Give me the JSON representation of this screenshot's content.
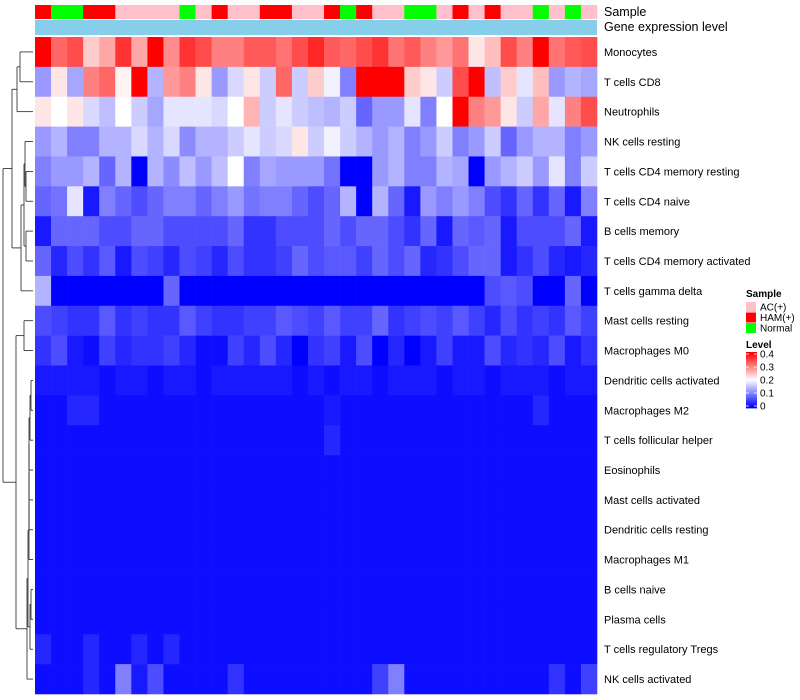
{
  "chart_data": {
    "type": "heatmap",
    "annotations": {
      "sample_label": "Sample",
      "expression_label": "Gene expression level",
      "sample_groups": [
        "HAM(+)",
        "Normal",
        "Normal",
        "HAM(+)",
        "HAM(+)",
        "AC(+)",
        "AC(+)",
        "AC(+)",
        "AC(+)",
        "Normal",
        "AC(+)",
        "HAM(+)",
        "AC(+)",
        "AC(+)",
        "HAM(+)",
        "HAM(+)",
        "AC(+)",
        "AC(+)",
        "HAM(+)",
        "Normal",
        "HAM(+)",
        "AC(+)",
        "AC(+)",
        "Normal",
        "Normal",
        "AC(+)",
        "HAM(+)",
        "AC(+)",
        "HAM(+)",
        "AC(+)",
        "AC(+)",
        "Normal",
        "AC(+)",
        "Normal",
        "AC(+)"
      ]
    },
    "rows": [
      "Monocytes",
      "T cells CD8",
      "Neutrophils",
      "NK cells resting",
      "T cells CD4 memory resting",
      "T cells CD4 naive",
      "B cells memory",
      "T cells CD4 memory activated",
      "T cells gamma delta",
      "Mast cells resting",
      "Macrophages M0",
      "Dendritic cells activated",
      "Macrophages M2",
      "T cells follicular helper",
      "Eosinophils",
      "Mast cells activated",
      "Dendritic cells resting",
      "Macrophages M1",
      "B cells naive",
      "Plasma cells",
      "T cells regulatory  Tregs",
      "NK cells activated"
    ],
    "values": [
      [
        0.4,
        0.32,
        0.34,
        0.24,
        0.27,
        0.36,
        0.27,
        0.4,
        0.29,
        0.36,
        0.34,
        0.3,
        0.3,
        0.33,
        0.33,
        0.31,
        0.34,
        0.37,
        0.33,
        0.32,
        0.34,
        0.36,
        0.31,
        0.33,
        0.3,
        0.28,
        0.31,
        0.22,
        0.25,
        0.34,
        0.3,
        0.4,
        0.31,
        0.33,
        0.34
      ],
      [
        0.12,
        0.22,
        0.13,
        0.3,
        0.32,
        0.21,
        0.4,
        0.14,
        0.28,
        0.3,
        0.22,
        0.12,
        0.17,
        0.22,
        0.16,
        0.32,
        0.16,
        0.24,
        0.19,
        0.1,
        0.4,
        0.4,
        0.4,
        0.24,
        0.22,
        0.16,
        0.34,
        0.4,
        0.15,
        0.24,
        0.18,
        0.25,
        0.12,
        0.14,
        0.13
      ],
      [
        0.22,
        0.2,
        0.22,
        0.17,
        0.15,
        0.2,
        0.16,
        0.13,
        0.18,
        0.18,
        0.18,
        0.17,
        0.2,
        0.26,
        0.16,
        0.18,
        0.16,
        0.15,
        0.14,
        0.16,
        0.08,
        0.12,
        0.12,
        0.18,
        0.1,
        0.2,
        0.4,
        0.3,
        0.28,
        0.22,
        0.16,
        0.27,
        0.18,
        0.3,
        0.34
      ],
      [
        0.12,
        0.14,
        0.1,
        0.1,
        0.14,
        0.14,
        0.17,
        0.14,
        0.17,
        0.11,
        0.14,
        0.14,
        0.16,
        0.18,
        0.16,
        0.17,
        0.22,
        0.16,
        0.19,
        0.16,
        0.14,
        0.12,
        0.14,
        0.1,
        0.12,
        0.16,
        0.1,
        0.12,
        0.16,
        0.08,
        0.12,
        0.14,
        0.14,
        0.1,
        0.12
      ],
      [
        0.1,
        0.12,
        0.12,
        0.14,
        0.08,
        0.14,
        0.0,
        0.14,
        0.11,
        0.15,
        0.12,
        0.15,
        0.2,
        0.1,
        0.13,
        0.12,
        0.12,
        0.12,
        0.09,
        0.0,
        0.0,
        0.12,
        0.14,
        0.1,
        0.1,
        0.14,
        0.13,
        0.0,
        0.12,
        0.14,
        0.16,
        0.12,
        0.18,
        0.1,
        0.16
      ],
      [
        0.08,
        0.09,
        0.18,
        0.02,
        0.1,
        0.08,
        0.06,
        0.08,
        0.1,
        0.1,
        0.08,
        0.1,
        0.12,
        0.09,
        0.1,
        0.1,
        0.08,
        0.06,
        0.08,
        0.14,
        0.0,
        0.14,
        0.08,
        0.02,
        0.12,
        0.1,
        0.12,
        0.1,
        0.06,
        0.04,
        0.08,
        0.04,
        0.08,
        0.02,
        0.1
      ],
      [
        0.02,
        0.08,
        0.08,
        0.08,
        0.06,
        0.06,
        0.08,
        0.08,
        0.06,
        0.06,
        0.06,
        0.06,
        0.08,
        0.04,
        0.04,
        0.06,
        0.06,
        0.06,
        0.08,
        0.06,
        0.08,
        0.08,
        0.06,
        0.04,
        0.08,
        0.02,
        0.08,
        0.07,
        0.08,
        0.02,
        0.06,
        0.06,
        0.06,
        0.08,
        0.02
      ],
      [
        0.08,
        0.03,
        0.06,
        0.04,
        0.07,
        0.02,
        0.06,
        0.05,
        0.03,
        0.06,
        0.05,
        0.03,
        0.06,
        0.04,
        0.04,
        0.05,
        0.08,
        0.06,
        0.07,
        0.07,
        0.05,
        0.08,
        0.06,
        0.08,
        0.03,
        0.04,
        0.06,
        0.08,
        0.08,
        0.02,
        0.04,
        0.06,
        0.03,
        0.02,
        0.03
      ],
      [
        0.14,
        0.0,
        0.0,
        0.0,
        0.0,
        0.0,
        0.0,
        0.0,
        0.08,
        0.0,
        0.0,
        0.0,
        0.0,
        0.0,
        0.0,
        0.0,
        0.0,
        0.0,
        0.0,
        0.0,
        0.0,
        0.0,
        0.0,
        0.0,
        0.0,
        0.0,
        0.0,
        0.0,
        0.06,
        0.07,
        0.06,
        0.0,
        0.0,
        0.08,
        0.0
      ],
      [
        0.06,
        0.05,
        0.04,
        0.04,
        0.07,
        0.04,
        0.05,
        0.04,
        0.04,
        0.07,
        0.05,
        0.04,
        0.04,
        0.05,
        0.05,
        0.07,
        0.06,
        0.05,
        0.07,
        0.05,
        0.05,
        0.08,
        0.04,
        0.05,
        0.06,
        0.05,
        0.07,
        0.05,
        0.03,
        0.06,
        0.04,
        0.05,
        0.04,
        0.07,
        0.05
      ],
      [
        0.04,
        0.06,
        0.02,
        0.01,
        0.05,
        0.03,
        0.04,
        0.04,
        0.05,
        0.03,
        0.01,
        0.01,
        0.05,
        0.03,
        0.06,
        0.03,
        0.0,
        0.04,
        0.05,
        0.02,
        0.06,
        0.0,
        0.03,
        0.0,
        0.02,
        0.05,
        0.02,
        0.02,
        0.06,
        0.03,
        0.04,
        0.03,
        0.06,
        0.02,
        0.04
      ],
      [
        0.02,
        0.02,
        0.02,
        0.02,
        0.01,
        0.02,
        0.02,
        0.01,
        0.02,
        0.02,
        0.01,
        0.02,
        0.02,
        0.02,
        0.02,
        0.02,
        0.01,
        0.02,
        0.01,
        0.02,
        0.02,
        0.01,
        0.02,
        0.02,
        0.02,
        0.01,
        0.02,
        0.02,
        0.01,
        0.02,
        0.02,
        0.02,
        0.01,
        0.02,
        0.02
      ],
      [
        0.01,
        0.01,
        0.03,
        0.03,
        0.01,
        0.01,
        0.01,
        0.01,
        0.01,
        0.01,
        0.01,
        0.01,
        0.01,
        0.01,
        0.01,
        0.01,
        0.01,
        0.01,
        0.02,
        0.01,
        0.01,
        0.01,
        0.01,
        0.01,
        0.01,
        0.01,
        0.01,
        0.01,
        0.01,
        0.01,
        0.01,
        0.03,
        0.01,
        0.01,
        0.01
      ],
      [
        0.01,
        0.01,
        0.01,
        0.01,
        0.01,
        0.01,
        0.01,
        0.01,
        0.01,
        0.01,
        0.01,
        0.01,
        0.01,
        0.01,
        0.01,
        0.01,
        0.01,
        0.01,
        0.03,
        0.01,
        0.01,
        0.01,
        0.01,
        0.01,
        0.01,
        0.01,
        0.01,
        0.01,
        0.01,
        0.01,
        0.01,
        0.01,
        0.01,
        0.01,
        0.01
      ],
      [
        0.01,
        0.01,
        0.01,
        0.01,
        0.01,
        0.01,
        0.01,
        0.01,
        0.01,
        0.01,
        0.01,
        0.01,
        0.01,
        0.01,
        0.01,
        0.01,
        0.01,
        0.01,
        0.01,
        0.01,
        0.01,
        0.01,
        0.01,
        0.01,
        0.01,
        0.01,
        0.01,
        0.01,
        0.01,
        0.01,
        0.01,
        0.01,
        0.01,
        0.01,
        0.01
      ],
      [
        0.01,
        0.01,
        0.01,
        0.01,
        0.01,
        0.01,
        0.01,
        0.01,
        0.01,
        0.01,
        0.01,
        0.01,
        0.01,
        0.01,
        0.01,
        0.01,
        0.01,
        0.01,
        0.01,
        0.01,
        0.01,
        0.01,
        0.01,
        0.01,
        0.01,
        0.01,
        0.01,
        0.01,
        0.01,
        0.01,
        0.01,
        0.01,
        0.01,
        0.01,
        0.01
      ],
      [
        0.01,
        0.01,
        0.01,
        0.01,
        0.01,
        0.01,
        0.01,
        0.01,
        0.01,
        0.01,
        0.01,
        0.01,
        0.01,
        0.01,
        0.01,
        0.01,
        0.01,
        0.01,
        0.01,
        0.01,
        0.01,
        0.01,
        0.01,
        0.01,
        0.01,
        0.01,
        0.01,
        0.01,
        0.01,
        0.01,
        0.01,
        0.01,
        0.01,
        0.01,
        0.01
      ],
      [
        0.01,
        0.01,
        0.01,
        0.01,
        0.01,
        0.01,
        0.01,
        0.01,
        0.01,
        0.01,
        0.01,
        0.01,
        0.01,
        0.01,
        0.01,
        0.01,
        0.01,
        0.01,
        0.01,
        0.01,
        0.01,
        0.01,
        0.01,
        0.01,
        0.01,
        0.01,
        0.01,
        0.01,
        0.01,
        0.01,
        0.01,
        0.01,
        0.01,
        0.01,
        0.01
      ],
      [
        0.01,
        0.01,
        0.01,
        0.01,
        0.01,
        0.01,
        0.01,
        0.01,
        0.01,
        0.01,
        0.01,
        0.01,
        0.01,
        0.01,
        0.01,
        0.01,
        0.01,
        0.01,
        0.01,
        0.01,
        0.01,
        0.01,
        0.01,
        0.01,
        0.01,
        0.01,
        0.01,
        0.01,
        0.01,
        0.01,
        0.01,
        0.01,
        0.01,
        0.01,
        0.01
      ],
      [
        0.01,
        0.01,
        0.01,
        0.01,
        0.01,
        0.01,
        0.01,
        0.01,
        0.01,
        0.01,
        0.01,
        0.01,
        0.01,
        0.01,
        0.01,
        0.01,
        0.01,
        0.01,
        0.01,
        0.01,
        0.01,
        0.01,
        0.01,
        0.01,
        0.01,
        0.01,
        0.01,
        0.01,
        0.01,
        0.01,
        0.01,
        0.01,
        0.01,
        0.01,
        0.01
      ],
      [
        0.03,
        0.01,
        0.01,
        0.03,
        0.01,
        0.01,
        0.03,
        0.01,
        0.03,
        0.01,
        0.01,
        0.01,
        0.01,
        0.01,
        0.01,
        0.01,
        0.01,
        0.01,
        0.01,
        0.01,
        0.01,
        0.01,
        0.01,
        0.01,
        0.01,
        0.01,
        0.01,
        0.01,
        0.01,
        0.01,
        0.01,
        0.01,
        0.01,
        0.01,
        0.01
      ],
      [
        0.01,
        0.01,
        0.01,
        0.03,
        0.01,
        0.1,
        0.02,
        0.06,
        0.01,
        0.01,
        0.01,
        0.01,
        0.04,
        0.01,
        0.01,
        0.01,
        0.01,
        0.01,
        0.01,
        0.01,
        0.01,
        0.05,
        0.1,
        0.01,
        0.01,
        0.01,
        0.01,
        0.01,
        0.01,
        0.01,
        0.01,
        0.01,
        0.04,
        0.01,
        0.05
      ]
    ],
    "color_scale": {
      "title": "Level",
      "min": 0,
      "mid": 0.2,
      "max": 0.4,
      "low_color": "#0000ff",
      "mid_color": "#ffffff",
      "high_color": "#ff0000",
      "ticks": [
        "0.4",
        "0.3",
        "0.2",
        "0.1",
        "0"
      ]
    },
    "sample_legend": {
      "title": "Sample",
      "items": [
        {
          "label": "AC(+)",
          "color": "#ffc0cb"
        },
        {
          "label": "HAM(+)",
          "color": "#ff0000"
        },
        {
          "label": "Normal",
          "color": "#00ff00"
        }
      ]
    },
    "expression_bar_color": "#87ceeb",
    "row_order_clustered": true
  }
}
